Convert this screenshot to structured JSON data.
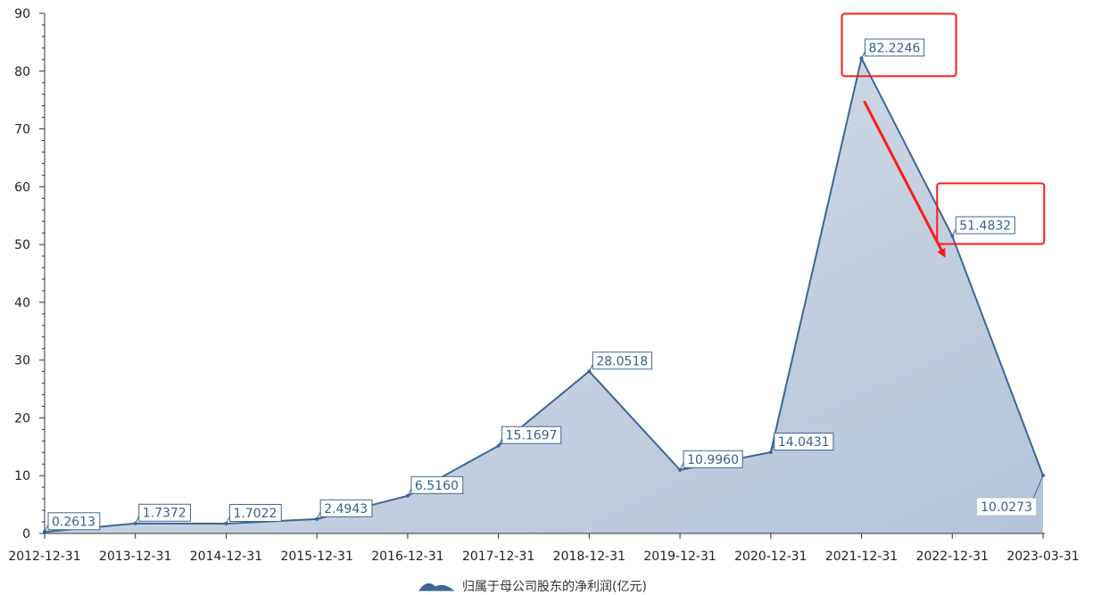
{
  "chart_data": {
    "type": "area",
    "categories": [
      "2012-12-31",
      "2013-12-31",
      "2014-12-31",
      "2015-12-31",
      "2016-12-31",
      "2017-12-31",
      "2018-12-31",
      "2019-12-31",
      "2020-12-31",
      "2021-12-31",
      "2022-12-31",
      "2023-03-31"
    ],
    "series": [
      {
        "name": "归属于母公司股东的净利润(亿元)",
        "values": [
          0.2613,
          1.7372,
          1.7022,
          2.4943,
          6.516,
          15.1697,
          28.0518,
          10.996,
          14.0431,
          82.2246,
          51.4832,
          10.0273
        ],
        "labels": [
          "0.2613",
          "1.7372",
          "1.7022",
          "2.4943",
          "6.5160",
          "15.1697",
          "28.0518",
          "10.9960",
          "14.0431",
          "82.2246",
          "51.4832",
          "10.0273"
        ]
      }
    ],
    "ylim": [
      0,
      90
    ],
    "yticks": [
      "0",
      "10",
      "20",
      "30",
      "40",
      "50",
      "60",
      "70",
      "80",
      "90"
    ],
    "grid": false,
    "legend_position": "bottom-center",
    "colors": {
      "line": "#3d6697",
      "area_top": "#dde3ec",
      "area_bottom": "#b3c3d8",
      "label_text": "#3a5f8f",
      "highlight": "#ff1a1a"
    },
    "annotations": [
      {
        "type": "highlight-box",
        "target": "2021-12-31"
      },
      {
        "type": "highlight-box",
        "target": "2022-12-31"
      },
      {
        "type": "arrow",
        "from": "2021-12-31",
        "to": "2022-12-31"
      }
    ]
  }
}
